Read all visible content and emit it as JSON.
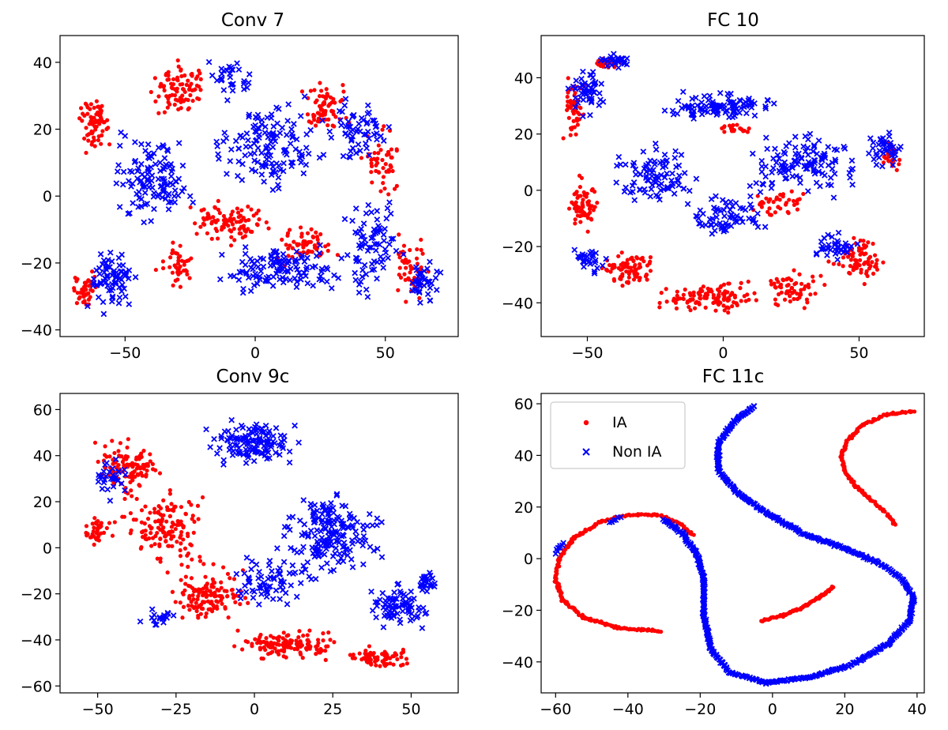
{
  "figure": {
    "legend": {
      "series": [
        {
          "name": "IA",
          "color": "#ff0000",
          "marker": "dot"
        },
        {
          "name": "Non IA",
          "color": "#0000ff",
          "marker": "x"
        }
      ]
    }
  },
  "chart_data": [
    {
      "type": "scatter",
      "title": "Conv 7",
      "xlim": [
        -75,
        78
      ],
      "ylim": [
        -42,
        48
      ],
      "xticks": [
        -50,
        0,
        50
      ],
      "yticks": [
        -40,
        -20,
        0,
        20,
        40
      ],
      "series": [
        {
          "name": "IA",
          "color": "#ff0000",
          "regions": [
            {
              "cx": -62,
              "cy": 22,
              "rx": 9,
              "ry": 12,
              "n": 70
            },
            {
              "cx": -30,
              "cy": 32,
              "rx": 14,
              "ry": 10,
              "n": 90
            },
            {
              "cx": 26,
              "cy": 28,
              "rx": 13,
              "ry": 11,
              "n": 70
            },
            {
              "cx": 48,
              "cy": 10,
              "rx": 10,
              "ry": 14,
              "n": 50
            },
            {
              "cx": -65,
              "cy": -28,
              "rx": 6,
              "ry": 7,
              "n": 40
            },
            {
              "cx": -10,
              "cy": -8,
              "rx": 22,
              "ry": 8,
              "n": 90
            },
            {
              "cx": 20,
              "cy": -14,
              "rx": 16,
              "ry": 8,
              "n": 60
            },
            {
              "cx": 60,
              "cy": -22,
              "rx": 10,
              "ry": 14,
              "n": 50
            },
            {
              "cx": -30,
              "cy": -20,
              "rx": 10,
              "ry": 8,
              "n": 40
            }
          ]
        },
        {
          "name": "Non IA",
          "color": "#0000ff",
          "regions": [
            {
              "cx": -40,
              "cy": 5,
              "rx": 20,
              "ry": 18,
              "n": 120
            },
            {
              "cx": 5,
              "cy": 15,
              "rx": 25,
              "ry": 18,
              "n": 140
            },
            {
              "cx": -55,
              "cy": -25,
              "rx": 12,
              "ry": 12,
              "n": 80
            },
            {
              "cx": 10,
              "cy": -22,
              "rx": 30,
              "ry": 9,
              "n": 120
            },
            {
              "cx": 45,
              "cy": -15,
              "rx": 15,
              "ry": 18,
              "n": 80
            },
            {
              "cx": 65,
              "cy": -25,
              "rx": 8,
              "ry": 10,
              "n": 40
            },
            {
              "cx": 40,
              "cy": 20,
              "rx": 15,
              "ry": 12,
              "n": 60
            },
            {
              "cx": -10,
              "cy": 35,
              "rx": 12,
              "ry": 8,
              "n": 30
            }
          ]
        }
      ]
    },
    {
      "type": "scatter",
      "title": "FC 10",
      "xlim": [
        -67,
        74
      ],
      "ylim": [
        -52,
        55
      ],
      "xticks": [
        -50,
        0,
        50
      ],
      "yticks": [
        -40,
        -20,
        0,
        20,
        40
      ],
      "series": [
        {
          "name": "IA",
          "color": "#ff0000",
          "regions": [
            {
              "cx": -55,
              "cy": 30,
              "rx": 5,
              "ry": 14,
              "n": 50
            },
            {
              "cx": -43,
              "cy": 45,
              "rx": 10,
              "ry": 3,
              "n": 30
            },
            {
              "cx": -52,
              "cy": -5,
              "rx": 7,
              "ry": 12,
              "n": 60
            },
            {
              "cx": -35,
              "cy": -28,
              "rx": 15,
              "ry": 8,
              "n": 80
            },
            {
              "cx": -5,
              "cy": -38,
              "rx": 25,
              "ry": 7,
              "n": 120
            },
            {
              "cx": 25,
              "cy": -35,
              "rx": 15,
              "ry": 8,
              "n": 60
            },
            {
              "cx": 50,
              "cy": -25,
              "rx": 12,
              "ry": 10,
              "n": 70
            },
            {
              "cx": 62,
              "cy": 12,
              "rx": 6,
              "ry": 8,
              "n": 30
            },
            {
              "cx": 5,
              "cy": 22,
              "rx": 10,
              "ry": 3,
              "n": 20
            },
            {
              "cx": 20,
              "cy": -5,
              "rx": 12,
              "ry": 6,
              "n": 40
            }
          ]
        },
        {
          "name": "Non IA",
          "color": "#0000ff",
          "regions": [
            {
              "cx": -50,
              "cy": 35,
              "rx": 8,
              "ry": 12,
              "n": 50
            },
            {
              "cx": -40,
              "cy": 46,
              "rx": 8,
              "ry": 3,
              "n": 30
            },
            {
              "cx": 0,
              "cy": 30,
              "rx": 25,
              "ry": 6,
              "n": 110
            },
            {
              "cx": -25,
              "cy": 5,
              "rx": 18,
              "ry": 14,
              "n": 90
            },
            {
              "cx": 30,
              "cy": 10,
              "rx": 25,
              "ry": 15,
              "n": 120
            },
            {
              "cx": 60,
              "cy": 15,
              "rx": 8,
              "ry": 8,
              "n": 40
            },
            {
              "cx": 0,
              "cy": -10,
              "rx": 20,
              "ry": 10,
              "n": 70
            },
            {
              "cx": -50,
              "cy": -25,
              "rx": 8,
              "ry": 6,
              "n": 30
            },
            {
              "cx": 40,
              "cy": -20,
              "rx": 12,
              "ry": 6,
              "n": 40
            }
          ]
        }
      ]
    },
    {
      "type": "scatter",
      "title": "Conv 9c",
      "xlim": [
        -62,
        65
      ],
      "ylim": [
        -63,
        67
      ],
      "xticks": [
        -50,
        -25,
        0,
        25,
        50
      ],
      "yticks": [
        -60,
        -40,
        -20,
        0,
        20,
        40,
        60
      ],
      "series": [
        {
          "name": "IA",
          "color": "#ff0000",
          "regions": [
            {
              "cx": -40,
              "cy": 35,
              "rx": 14,
              "ry": 14,
              "n": 110
            },
            {
              "cx": -28,
              "cy": 10,
              "rx": 18,
              "ry": 20,
              "n": 140
            },
            {
              "cx": -15,
              "cy": -20,
              "rx": 16,
              "ry": 16,
              "n": 130
            },
            {
              "cx": 10,
              "cy": -42,
              "rx": 22,
              "ry": 8,
              "n": 130
            },
            {
              "cx": 40,
              "cy": -48,
              "rx": 12,
              "ry": 6,
              "n": 70
            },
            {
              "cx": -50,
              "cy": 8,
              "rx": 6,
              "ry": 8,
              "n": 40
            }
          ]
        },
        {
          "name": "Non IA",
          "color": "#0000ff",
          "regions": [
            {
              "cx": 0,
              "cy": 45,
              "rx": 18,
              "ry": 13,
              "n": 130
            },
            {
              "cx": 25,
              "cy": 5,
              "rx": 20,
              "ry": 22,
              "n": 180
            },
            {
              "cx": 45,
              "cy": -25,
              "rx": 12,
              "ry": 14,
              "n": 80
            },
            {
              "cx": 5,
              "cy": -15,
              "rx": 15,
              "ry": 15,
              "n": 70
            },
            {
              "cx": 55,
              "cy": -15,
              "rx": 4,
              "ry": 6,
              "n": 25
            },
            {
              "cx": -45,
              "cy": 30,
              "rx": 8,
              "ry": 12,
              "n": 30
            },
            {
              "cx": -30,
              "cy": -30,
              "rx": 8,
              "ry": 5,
              "n": 20
            }
          ]
        }
      ]
    },
    {
      "type": "scatter",
      "title": "FC 11c",
      "xlim": [
        -64,
        42
      ],
      "ylim": [
        -52,
        64
      ],
      "xticks": [
        -60,
        -40,
        -20,
        0,
        20,
        40
      ],
      "yticks": [
        -40,
        -20,
        0,
        20,
        40,
        60
      ],
      "legend": {
        "position": "upper-left",
        "entries": [
          "IA",
          "Non IA"
        ]
      },
      "series": [
        {
          "name": "IA",
          "color": "#ff0000",
          "curves": [
            {
              "points": [
                [
                  -31,
                  -28
                ],
                [
                  -42,
                  -27
                ],
                [
                  -52,
                  -23
                ],
                [
                  -58,
                  -16
                ],
                [
                  -60,
                  -8
                ],
                [
                  -59,
                  0
                ],
                [
                  -55,
                  8
                ],
                [
                  -48,
                  14
                ],
                [
                  -40,
                  17
                ],
                [
                  -32,
                  17
                ],
                [
                  -26,
                  14
                ],
                [
                  -22,
                  9
                ]
              ],
              "n": 260
            },
            {
              "points": [
                [
                  -3,
                  -24
                ],
                [
                  3,
                  -22
                ],
                [
                  8,
                  -19
                ],
                [
                  13,
                  -15
                ],
                [
                  17,
                  -11
                ]
              ],
              "n": 90
            },
            {
              "points": [
                [
                  39,
                  57
                ],
                [
                  32,
                  56
                ],
                [
                  25,
                  52
                ],
                [
                  21,
                  46
                ],
                [
                  19,
                  40
                ],
                [
                  20,
                  34
                ],
                [
                  23,
                  28
                ],
                [
                  28,
                  22
                ],
                [
                  32,
                  17
                ],
                [
                  34,
                  13
                ]
              ],
              "n": 150
            }
          ]
        },
        {
          "name": "Non IA",
          "color": "#0000ff",
          "curves": [
            {
              "points": [
                [
                  -5,
                  59
                ],
                [
                  -10,
                  54
                ],
                [
                  -15,
                  45
                ],
                [
                  -15,
                  34
                ],
                [
                  -10,
                  26
                ],
                [
                  -2,
                  18
                ],
                [
                  8,
                  10
                ],
                [
                  20,
                  4
                ],
                [
                  30,
                  -2
                ],
                [
                  36,
                  -8
                ],
                [
                  39,
                  -15
                ],
                [
                  38,
                  -24
                ],
                [
                  32,
                  -33
                ],
                [
                  22,
                  -41
                ],
                [
                  10,
                  -46
                ],
                [
                  -2,
                  -48
                ],
                [
                  -12,
                  -44
                ],
                [
                  -17,
                  -35
                ],
                [
                  -19,
                  -22
                ],
                [
                  -19,
                  -8
                ],
                [
                  -21,
                  2
                ],
                [
                  -25,
                  10
                ],
                [
                  -30,
                  15
                ]
              ],
              "n": 700
            },
            {
              "points": [
                [
                  -60,
                  2
                ],
                [
                  -58,
                  6
                ]
              ],
              "n": 8
            },
            {
              "points": [
                [
                  -45,
                  14
                ],
                [
                  -42,
                  16
                ]
              ],
              "n": 6
            }
          ]
        }
      ]
    }
  ]
}
